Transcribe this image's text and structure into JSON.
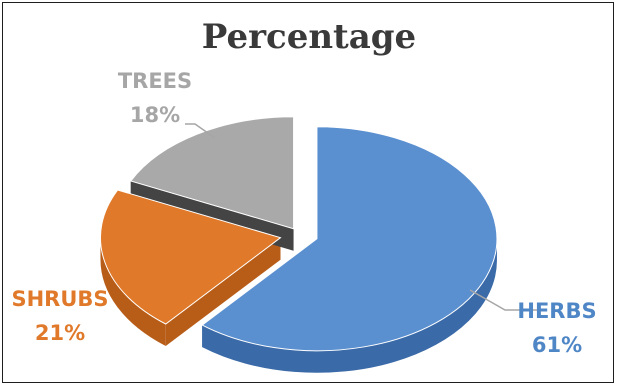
{
  "chart_data": {
    "type": "pie",
    "title": "Percentage",
    "slices": [
      {
        "label": "HERBS",
        "value": 61,
        "display": "61%",
        "color": "#5a8fd0",
        "side": "#3a6aa8",
        "label_color": "#4f86c6"
      },
      {
        "label": "SHRUBS",
        "value": 21,
        "display": "21%",
        "color": "#e07a2a",
        "side": "#b85d18",
        "label_color": "#e07a2a"
      },
      {
        "label": "TREES",
        "value": 18,
        "display": "18%",
        "color": "#a9a9a9",
        "side": "#444444",
        "label_color": "#a6a6a6"
      }
    ],
    "legend": "none",
    "style": "3d-exploded"
  }
}
